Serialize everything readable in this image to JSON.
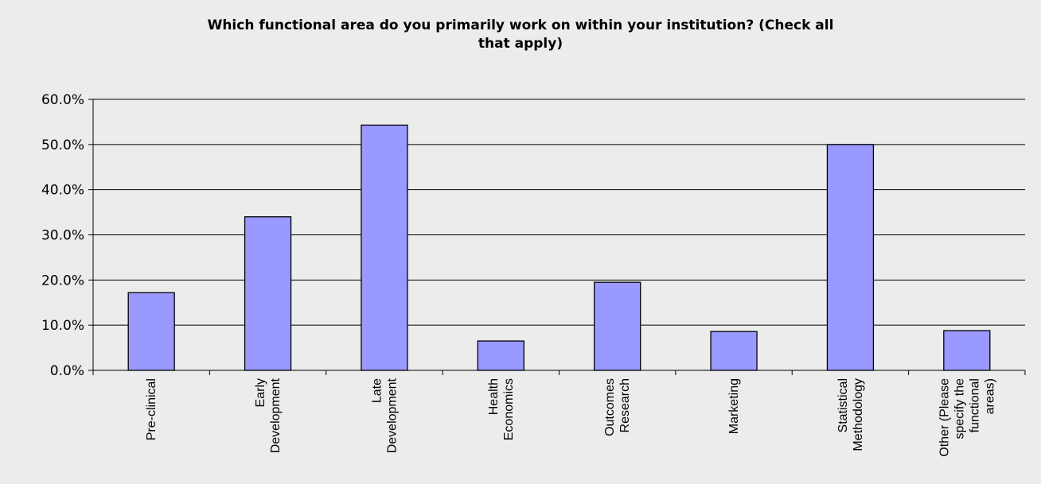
{
  "chart_data": {
    "type": "bar",
    "title_lines": [
      "Which functional area do you primarily work on within your institution? (Check all",
      "that apply)"
    ],
    "categories": [
      [
        "Pre-clinical"
      ],
      [
        "Early",
        "Development"
      ],
      [
        "Late",
        "Development"
      ],
      [
        "Health",
        "Economics"
      ],
      [
        "Outcomes",
        "Research"
      ],
      [
        "Marketing"
      ],
      [
        "Statistical",
        "Methodology"
      ],
      [
        "Other (Please",
        "specify the",
        "functional",
        "areas)"
      ]
    ],
    "values": [
      17.2,
      34.0,
      54.3,
      6.5,
      19.5,
      8.6,
      50.0,
      8.8
    ],
    "ylim": [
      0,
      60
    ],
    "yticks": [
      "0.0%",
      "10.0%",
      "20.0%",
      "30.0%",
      "40.0%",
      "50.0%",
      "60.0%"
    ],
    "grid": true,
    "bar_color": "#9999ff",
    "bar_edge_color": "#000000"
  }
}
